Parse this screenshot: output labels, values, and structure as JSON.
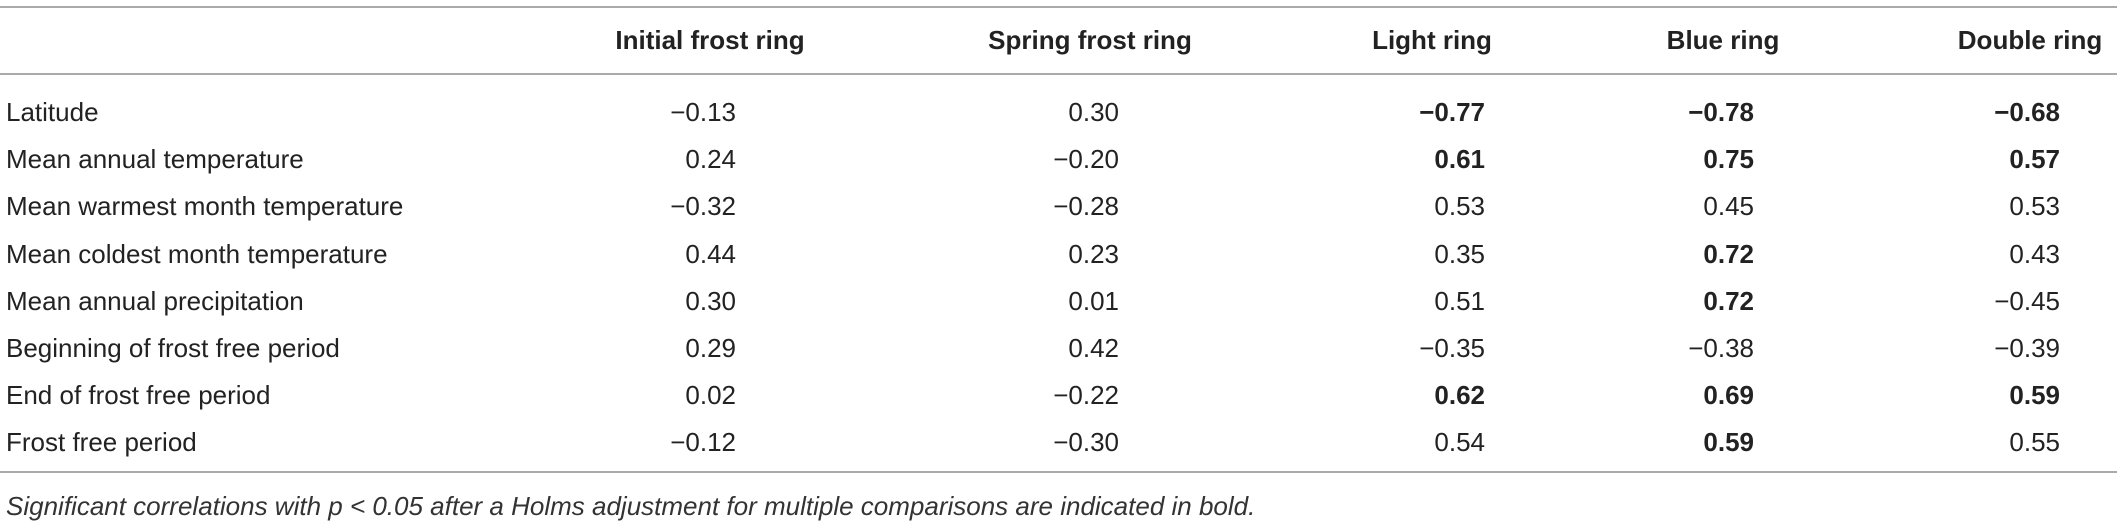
{
  "table": {
    "header": [
      "Initial frost ring",
      "Spring frost ring",
      "Light ring",
      "Blue ring",
      "Double ring"
    ],
    "rows": [
      {
        "label": "Latitude",
        "values": [
          "−0.13",
          "0.30",
          "−0.77",
          "−0.78",
          "−0.68"
        ],
        "bold": [
          false,
          false,
          true,
          true,
          true
        ]
      },
      {
        "label": "Mean annual temperature",
        "values": [
          "0.24",
          "−0.20",
          "0.61",
          "0.75",
          "0.57"
        ],
        "bold": [
          false,
          false,
          true,
          true,
          true
        ]
      },
      {
        "label": "Mean warmest month temperature",
        "values": [
          "−0.32",
          "−0.28",
          "0.53",
          "0.45",
          "0.53"
        ],
        "bold": [
          false,
          false,
          false,
          false,
          false
        ]
      },
      {
        "label": "Mean coldest month temperature",
        "values": [
          "0.44",
          "0.23",
          "0.35",
          "0.72",
          "0.43"
        ],
        "bold": [
          false,
          false,
          false,
          true,
          false
        ]
      },
      {
        "label": "Mean annual precipitation",
        "values": [
          "0.30",
          "0.01",
          "0.51",
          "0.72",
          "−0.45"
        ],
        "bold": [
          false,
          false,
          false,
          true,
          false
        ]
      },
      {
        "label": "Beginning of frost free period",
        "values": [
          "0.29",
          "0.42",
          "−0.35",
          "−0.38",
          "−0.39"
        ],
        "bold": [
          false,
          false,
          false,
          false,
          false
        ]
      },
      {
        "label": "End of frost free period",
        "values": [
          "0.02",
          "−0.22",
          "0.62",
          "0.69",
          "0.59"
        ],
        "bold": [
          false,
          false,
          true,
          true,
          true
        ]
      },
      {
        "label": "Frost free period",
        "values": [
          "−0.12",
          "−0.30",
          "0.54",
          "0.59",
          "0.55"
        ],
        "bold": [
          false,
          false,
          false,
          true,
          false
        ]
      }
    ],
    "footnote": "Significant correlations with p < 0.05 after a Holms adjustment for multiple comparisons are indicated in bold."
  }
}
